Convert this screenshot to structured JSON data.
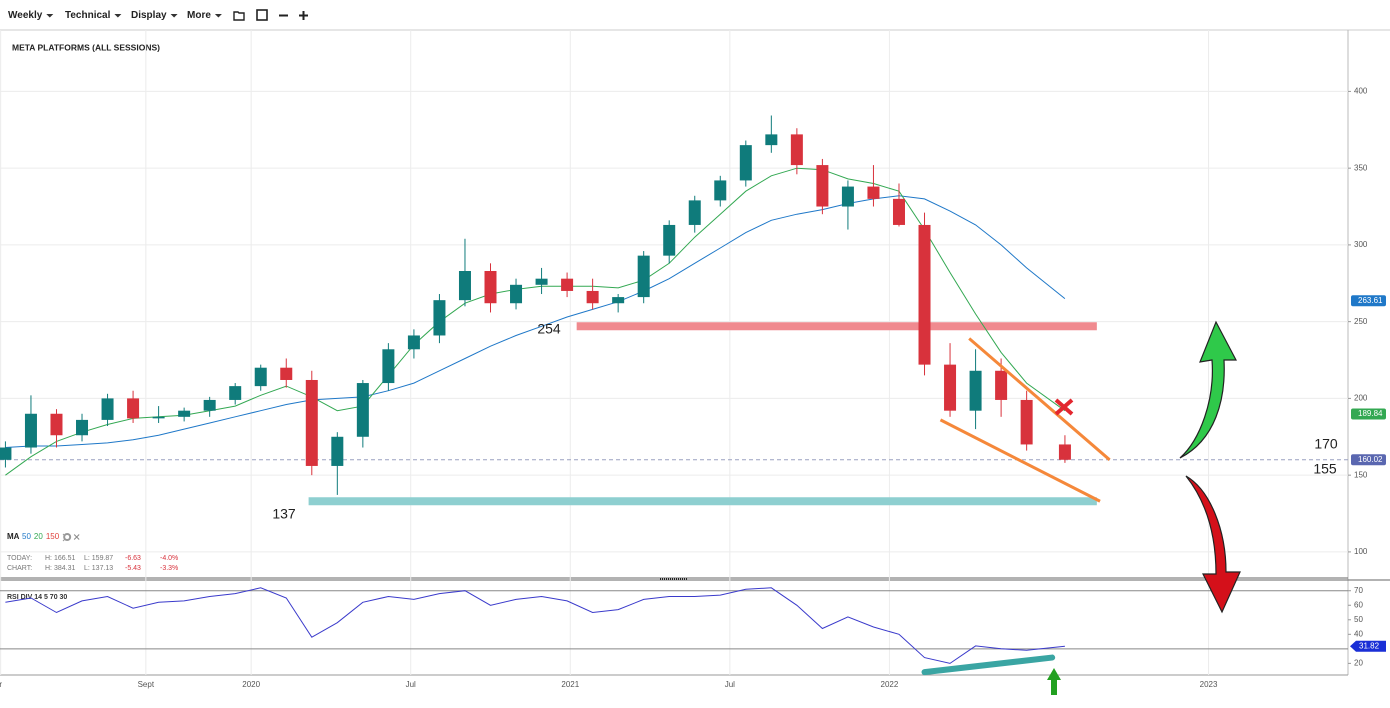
{
  "toolbar": {
    "menus": [
      "Weekly",
      "Technical",
      "Display",
      "More"
    ]
  },
  "chart_data": [
    {
      "type": "candlestick",
      "title": "META PLATFORMS (ALL SESSIONS)",
      "x": [
        2019.23,
        2019.31,
        2019.39,
        2019.47,
        2019.55,
        2019.63,
        2019.71,
        2019.79,
        2019.87,
        2019.95,
        2020.03,
        2020.11,
        2020.19,
        2020.27,
        2020.35,
        2020.43,
        2020.51,
        2020.59,
        2020.67,
        2020.75,
        2020.83,
        2020.91,
        2020.99,
        2021.07,
        2021.15,
        2021.23,
        2021.31,
        2021.39,
        2021.47,
        2021.55,
        2021.63,
        2021.71,
        2021.79,
        2021.87,
        2021.95,
        2022.03,
        2022.11,
        2022.19,
        2022.27,
        2022.35,
        2022.43,
        2022.55
      ],
      "open": [
        160,
        168,
        190,
        176,
        186,
        200,
        187,
        188,
        192,
        199,
        208,
        220,
        212,
        156,
        175,
        210,
        232,
        241,
        264,
        283,
        262,
        274,
        278,
        270,
        262,
        266,
        293,
        313,
        329,
        342,
        365,
        372,
        352,
        325,
        338,
        330,
        313,
        222,
        192,
        218,
        199,
        170
      ],
      "high": [
        172,
        202,
        193,
        190,
        203,
        205,
        195,
        194,
        201,
        210,
        222,
        226,
        218,
        178,
        212,
        236,
        245,
        268,
        304,
        288,
        278,
        285,
        282,
        278,
        268,
        296,
        316,
        332,
        345,
        368,
        384.31,
        376,
        356,
        342,
        352,
        340,
        321,
        236,
        232,
        226,
        205,
        176
      ],
      "low": [
        155,
        164,
        168,
        172,
        182,
        184,
        184,
        185,
        188,
        196,
        205,
        207,
        150,
        137.13,
        168,
        205,
        226,
        236,
        260,
        256,
        258,
        268,
        266,
        258,
        256,
        262,
        288,
        308,
        325,
        338,
        360,
        346,
        320,
        310,
        325,
        312,
        215,
        188,
        180,
        188,
        166,
        158
      ],
      "close": [
        168,
        190,
        176,
        186,
        200,
        187,
        188,
        192,
        199,
        208,
        220,
        212,
        156,
        175,
        210,
        232,
        241,
        264,
        283,
        262,
        274,
        278,
        270,
        262,
        266,
        293,
        313,
        329,
        342,
        365,
        372,
        352,
        325,
        338,
        330,
        313,
        222,
        192,
        218,
        199,
        170,
        160.02
      ],
      "up_color": "#0f7b7b",
      "down_color": "#d8323c",
      "xlim": [
        2019.213,
        2023.437
      ],
      "xticks": [
        {
          "value": 2019.215,
          "label": "r"
        },
        {
          "value": 2019.67,
          "label": "Sept"
        },
        {
          "value": 2020,
          "label": "2020"
        },
        {
          "value": 2020.5,
          "label": "Jul"
        },
        {
          "value": 2021,
          "label": "2021"
        },
        {
          "value": 2021.5,
          "label": "Jul"
        },
        {
          "value": 2022,
          "label": "2022"
        },
        {
          "value": 2023,
          "label": "2023"
        }
      ],
      "ylim": [
        83,
        440
      ],
      "yticks": [
        100,
        150,
        200,
        250,
        300,
        350,
        400
      ],
      "grid": true,
      "ma_label": "MA",
      "moving_averages": [
        {
          "period": 50,
          "color": "#1f78c8",
          "values": [
            168,
            169,
            169,
            170,
            171,
            173,
            176,
            180,
            184,
            188,
            192,
            196,
            199,
            200,
            201,
            205,
            210,
            218,
            226,
            234,
            241,
            247,
            253,
            258,
            263,
            270,
            278,
            288,
            298,
            308,
            316,
            320,
            323,
            327,
            330,
            332,
            330,
            322,
            313,
            300,
            285,
            265
          ]
        },
        {
          "period": 20,
          "color": "#33a852",
          "values": [
            150,
            162,
            172,
            178,
            183,
            187,
            188,
            189,
            192,
            195,
            202,
            208,
            201,
            192,
            195,
            215,
            235,
            250,
            262,
            268,
            271,
            273,
            273,
            273,
            272,
            277,
            288,
            305,
            320,
            335,
            345,
            350,
            349,
            343,
            340,
            335,
            310,
            282,
            255,
            230,
            210,
            192
          ]
        },
        {
          "period": 150,
          "color": "#e0413c"
        }
      ],
      "price_labels": [
        {
          "value": 263.61,
          "color": "#1f78c8"
        },
        {
          "value": 189.84,
          "color": "#33a852"
        },
        {
          "value": 160.02,
          "color": "#5a67b0"
        }
      ],
      "stats": [
        {
          "label": "TODAY:",
          "values": [
            "H: 166.51",
            "L: 159.87",
            "-6.63",
            "-4.0%"
          ]
        },
        {
          "label": "CHART:",
          "values": [
            "H: 384.31",
            "L: 137.13",
            "-5.43",
            "-3.3%"
          ]
        }
      ],
      "zones": [
        {
          "value": 247,
          "x": [
            2021.02,
            2022.65
          ],
          "color": "#f08a8f"
        },
        {
          "value": 133,
          "x": [
            2020.18,
            2022.65
          ],
          "color": "#8ecfd0"
        }
      ],
      "trendlines": [
        {
          "x": [
            2022.25,
            2022.69
          ],
          "y": [
            239,
            160
          ],
          "color": "#f5883a"
        },
        {
          "x": [
            2022.16,
            2022.66
          ],
          "y": [
            186,
            133
          ],
          "color": "#f5883a"
        }
      ],
      "annotations": [
        "254",
        "137",
        "170",
        "155"
      ]
    },
    {
      "type": "line",
      "title": "RSI DIV 14 5 70 30",
      "x": [
        2019.23,
        2019.31,
        2019.39,
        2019.47,
        2019.55,
        2019.63,
        2019.71,
        2019.79,
        2019.87,
        2019.95,
        2020.03,
        2020.11,
        2020.19,
        2020.27,
        2020.35,
        2020.43,
        2020.51,
        2020.59,
        2020.67,
        2020.75,
        2020.83,
        2020.91,
        2020.99,
        2021.07,
        2021.15,
        2021.23,
        2021.31,
        2021.39,
        2021.47,
        2021.55,
        2021.63,
        2021.71,
        2021.79,
        2021.87,
        2021.95,
        2022.03,
        2022.11,
        2022.19,
        2022.27,
        2022.35,
        2022.43,
        2022.55
      ],
      "values": [
        62,
        65,
        55,
        63,
        66,
        58,
        62,
        63,
        66,
        68,
        72,
        65,
        38,
        48,
        62,
        66,
        64,
        68,
        70,
        60,
        64,
        66,
        63,
        55,
        57,
        64,
        66,
        66,
        67,
        71,
        72,
        60,
        44,
        52,
        45,
        40,
        24,
        20,
        32,
        30,
        29,
        31.82
      ],
      "color": "#3a3acb",
      "ylim": [
        12,
        76
      ],
      "yticks": [
        20,
        40,
        50,
        60,
        70
      ],
      "levels": [
        70,
        30
      ],
      "last_label": {
        "value": 31.82,
        "color": "#1a2fd6"
      },
      "trendlines": [
        {
          "x": [
            2022.11,
            2022.51
          ],
          "y": [
            14,
            24
          ],
          "color": "#3aa5a3"
        }
      ]
    }
  ]
}
